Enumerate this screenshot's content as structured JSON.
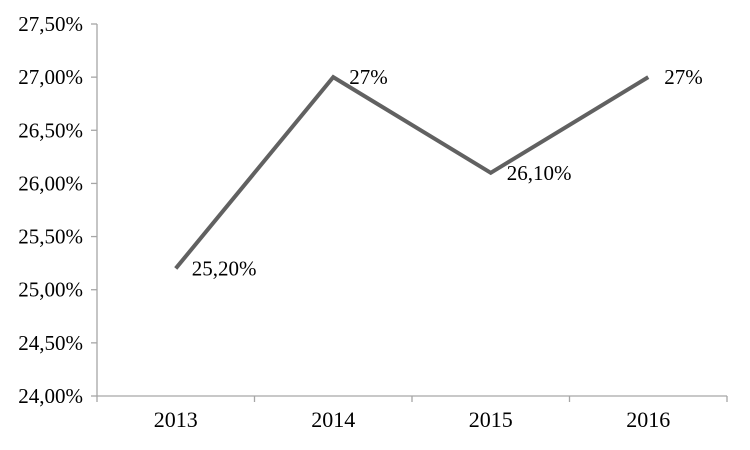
{
  "chart_data": {
    "type": "line",
    "title": "",
    "xlabel": "",
    "ylabel": "",
    "categories": [
      "2013",
      "2014",
      "2015",
      "2016"
    ],
    "series": [
      {
        "name": "",
        "values": [
          25.2,
          27.0,
          26.1,
          27.0
        ],
        "point_labels": [
          "25,20%",
          "27%",
          "26,10%",
          "27%"
        ]
      }
    ],
    "ylim": [
      24.0,
      27.5
    ],
    "y_tick_step": 0.5,
    "y_ticks": [
      {
        "value": 27.5,
        "label": "27,50%"
      },
      {
        "value": 27.0,
        "label": "27,00%"
      },
      {
        "value": 26.5,
        "label": "26,50%"
      },
      {
        "value": 26.0,
        "label": "26,00%"
      },
      {
        "value": 25.5,
        "label": "25,50%"
      },
      {
        "value": 25.0,
        "label": "25,00%"
      },
      {
        "value": 24.5,
        "label": "24,50%"
      },
      {
        "value": 24.0,
        "label": "24,00%"
      }
    ],
    "decimal_separator": ",",
    "grid": false,
    "legend": false,
    "legend_position": "none"
  },
  "colors": {
    "line": "#616161",
    "axis": "#a6a6a6",
    "text": "#000000",
    "background": "#ffffff"
  }
}
